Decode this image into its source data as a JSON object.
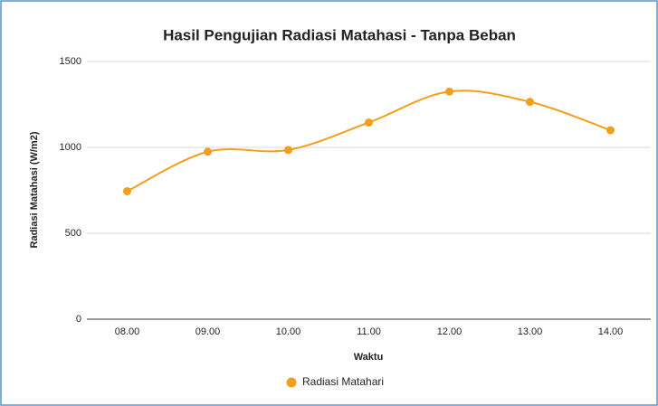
{
  "chart_data": {
    "type": "line",
    "title": "Hasil Pengujian Radiasi Matahasi - Tanpa Beban",
    "x_label": "Waktu",
    "y_label": "Radiasi Matahasi (W/m2)",
    "categories": [
      "08.00",
      "09.00",
      "10.00",
      "11.00",
      "12.00",
      "13.00",
      "14.00"
    ],
    "series": [
      {
        "name": "Radiasi Matahari",
        "color": "#f29f1b",
        "values": [
          745,
          975,
          985,
          1145,
          1325,
          1265,
          1100
        ]
      }
    ],
    "ylim": [
      0,
      1500
    ],
    "yticks": [
      0,
      500,
      1000,
      1500
    ],
    "grid": true,
    "smooth": true,
    "legend": "bottom"
  }
}
